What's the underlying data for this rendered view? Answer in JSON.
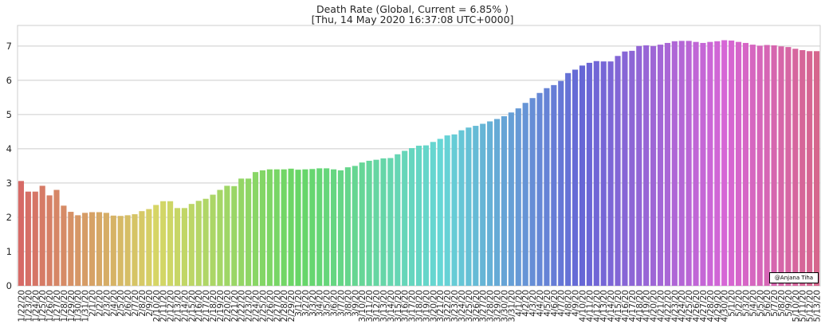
{
  "chart_data": {
    "type": "bar",
    "title_line1": "Death Rate (Global, Current = 6.85% )",
    "title_line2": "[Thu, 14 May 2020 16:37:08 UTC+0000]",
    "xlabel": "",
    "ylabel": "",
    "ylim": [
      0,
      7.6
    ],
    "yticks": [
      0,
      1,
      2,
      3,
      4,
      5,
      6,
      7
    ],
    "grid": "horizontal",
    "categories": [
      "1/22/20",
      "1/23/20",
      "1/24/20",
      "1/25/20",
      "1/26/20",
      "1/27/20",
      "1/28/20",
      "1/29/20",
      "1/30/20",
      "1/31/20",
      "2/1/20",
      "2/2/20",
      "2/3/20",
      "2/4/20",
      "2/5/20",
      "2/6/20",
      "2/7/20",
      "2/8/20",
      "2/9/20",
      "2/10/20",
      "2/11/20",
      "2/12/20",
      "2/13/20",
      "2/14/20",
      "2/15/20",
      "2/16/20",
      "2/17/20",
      "2/18/20",
      "2/19/20",
      "2/20/20",
      "2/21/20",
      "2/22/20",
      "2/23/20",
      "2/24/20",
      "2/25/20",
      "2/26/20",
      "2/27/20",
      "2/28/20",
      "2/29/20",
      "3/1/20",
      "3/2/20",
      "3/3/20",
      "3/4/20",
      "3/5/20",
      "3/6/20",
      "3/7/20",
      "3/8/20",
      "3/9/20",
      "3/10/20",
      "3/11/20",
      "3/12/20",
      "3/13/20",
      "3/14/20",
      "3/15/20",
      "3/16/20",
      "3/17/20",
      "3/18/20",
      "3/19/20",
      "3/20/20",
      "3/21/20",
      "3/22/20",
      "3/23/20",
      "3/24/20",
      "3/25/20",
      "3/26/20",
      "3/27/20",
      "3/28/20",
      "3/29/20",
      "3/30/20",
      "3/31/20",
      "4/1/20",
      "4/2/20",
      "4/3/20",
      "4/4/20",
      "4/5/20",
      "4/6/20",
      "4/7/20",
      "4/8/20",
      "4/9/20",
      "4/10/20",
      "4/11/20",
      "4/12/20",
      "4/13/20",
      "4/14/20",
      "4/15/20",
      "4/16/20",
      "4/17/20",
      "4/18/20",
      "4/19/20",
      "4/20/20",
      "4/21/20",
      "4/22/20",
      "4/23/20",
      "4/24/20",
      "4/25/20",
      "4/26/20",
      "4/27/20",
      "4/28/20",
      "4/29/20",
      "4/30/20",
      "5/1/20",
      "5/2/20",
      "5/3/20",
      "5/4/20",
      "5/5/20",
      "5/6/20",
      "5/7/20",
      "5/8/20",
      "5/9/20",
      "5/10/20",
      "5/11/20",
      "5/12/20",
      "5/13/20"
    ],
    "values": [
      3.06,
      2.75,
      2.75,
      2.92,
      2.64,
      2.8,
      2.34,
      2.16,
      2.06,
      2.13,
      2.15,
      2.15,
      2.13,
      2.05,
      2.04,
      2.06,
      2.09,
      2.18,
      2.24,
      2.36,
      2.47,
      2.47,
      2.27,
      2.27,
      2.39,
      2.48,
      2.54,
      2.66,
      2.8,
      2.92,
      2.91,
      3.13,
      3.13,
      3.32,
      3.37,
      3.4,
      3.4,
      3.4,
      3.42,
      3.39,
      3.4,
      3.41,
      3.43,
      3.43,
      3.4,
      3.37,
      3.46,
      3.5,
      3.6,
      3.65,
      3.68,
      3.72,
      3.73,
      3.84,
      3.94,
      4.02,
      4.09,
      4.1,
      4.2,
      4.29,
      4.39,
      4.42,
      4.54,
      4.62,
      4.67,
      4.73,
      4.8,
      4.87,
      4.95,
      5.06,
      5.18,
      5.34,
      5.48,
      5.63,
      5.77,
      5.86,
      5.98,
      6.21,
      6.31,
      6.43,
      6.51,
      6.56,
      6.55,
      6.55,
      6.71,
      6.84,
      6.86,
      7.0,
      7.02,
      7.0,
      7.04,
      7.09,
      7.14,
      7.15,
      7.15,
      7.12,
      7.09,
      7.12,
      7.14,
      7.17,
      7.16,
      7.12,
      7.09,
      7.04,
      7.01,
      7.03,
      7.02,
      6.99,
      6.97,
      6.92,
      6.88,
      6.85,
      6.85
    ],
    "watermark": "@Anjana Tiha"
  }
}
